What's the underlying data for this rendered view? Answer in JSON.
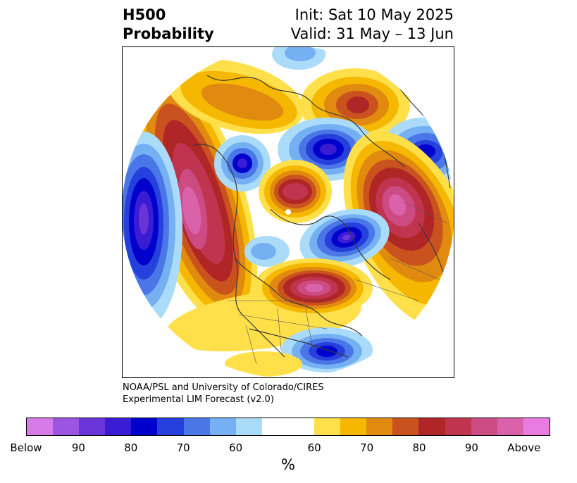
{
  "title": {
    "left_line1": "H500",
    "left_line2": "Probability",
    "right_line1": "Init: Sat 10 May 2025",
    "right_line2": "Valid: 31 May – 13 Jun"
  },
  "credit": {
    "line1": "NOAA/PSL and University of Colorado/CIRES",
    "line2": "Experimental LIM Forecast (v2.0)"
  },
  "colorbar": {
    "tick_labels": [
      "Below",
      "90",
      "80",
      "70",
      "60",
      "60",
      "70",
      "80",
      "90",
      "Above"
    ],
    "units": "%",
    "colors": [
      "#d87be8",
      "#9b55e0",
      "#6a35d8",
      "#3a1cd4",
      "#0000cc",
      "#2540dc",
      "#4a76e8",
      "#74b0f2",
      "#aadcfa",
      "#ffffff",
      "#ffe04a",
      "#f5b700",
      "#e08a10",
      "#c9521e",
      "#b02525",
      "#c0344f",
      "#cc4b82",
      "#da62ab",
      "#e87ce0"
    ]
  },
  "map": {
    "projection": "north-polar-stereographic",
    "field": "500-hPa height tercile probability",
    "anomaly_centers": [
      {
        "region": "Gulf of Alaska / NE Pacific",
        "category": "above",
        "max_pct": "90"
      },
      {
        "region": "Central North Pacific",
        "category": "below",
        "max_pct": "90"
      },
      {
        "region": "Eastern Siberia",
        "category": "below",
        "max_pct": "80"
      },
      {
        "region": "Laptev / Kara Sea",
        "category": "above",
        "max_pct": "80"
      },
      {
        "region": "Barents / Arctic Ocean",
        "category": "below",
        "max_pct": "80"
      },
      {
        "region": "Scandinavia",
        "category": "above",
        "max_pct": "70"
      },
      {
        "region": "Greenland / Labrador",
        "category": "below",
        "max_pct": "80"
      },
      {
        "region": "Western Russia / Kazakhstan",
        "category": "above",
        "max_pct": "90"
      },
      {
        "region": "Great Lakes / Hudson Bay",
        "category": "above",
        "max_pct": "90"
      },
      {
        "region": "Subtropical Atlantic",
        "category": "below",
        "max_pct": "80"
      }
    ]
  }
}
